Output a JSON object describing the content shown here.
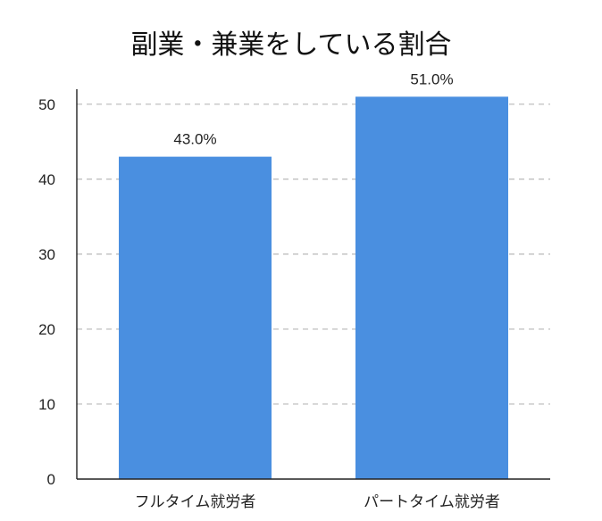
{
  "chart_data": {
    "type": "bar",
    "title": "副業・兼業をしている割合",
    "categories": [
      "フルタイム就労者",
      "パートタイム就労者"
    ],
    "values": [
      43.0,
      51.0
    ],
    "data_labels": [
      "43.0%",
      "51.0%"
    ],
    "xlabel": "",
    "ylabel": "",
    "ylim": [
      0,
      52
    ],
    "yticks": [
      0,
      10,
      20,
      30,
      40,
      50
    ],
    "grid": true,
    "bar_color": "#4a8fe0"
  }
}
